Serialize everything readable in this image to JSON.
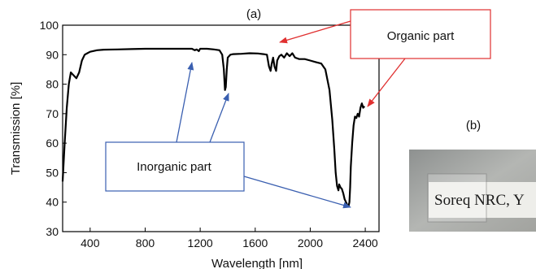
{
  "panel_a_label": "(a)",
  "panel_b_label": "(b)",
  "photo_caption": "Soreq NRC, Y",
  "colors": {
    "curve": "#000000",
    "organic_annotation": "#e03030",
    "inorganic_annotation": "#3a5fb0"
  },
  "annotations": {
    "organic": "Organic part",
    "inorganic": "Inorganic part"
  },
  "chart_data": {
    "type": "line",
    "title": "",
    "xlabel": "Wavelength [nm]",
    "ylabel": "Transmission [%]",
    "xlim": [
      200,
      2500
    ],
    "ylim": [
      30,
      100
    ],
    "xticks": [
      400,
      800,
      1200,
      1600,
      2000,
      2400
    ],
    "yticks": [
      30,
      40,
      50,
      60,
      70,
      80,
      90,
      100
    ],
    "grid": false,
    "series": [
      {
        "x": [
          200,
          215,
          230,
          245,
          260,
          280,
          300,
          320,
          340,
          360,
          380,
          400,
          450,
          500,
          600,
          700,
          800,
          900,
          1000,
          1100,
          1140,
          1160,
          1175,
          1190,
          1200,
          1250,
          1300,
          1340,
          1360,
          1372,
          1380,
          1386,
          1393,
          1400,
          1420,
          1440,
          1500,
          1560,
          1620,
          1660,
          1685,
          1700,
          1712,
          1720,
          1730,
          1740,
          1752,
          1760,
          1775,
          1790,
          1810,
          1830,
          1850,
          1870,
          1890,
          1920,
          1960,
          2000,
          2040,
          2080,
          2110,
          2140,
          2160,
          2175,
          2185,
          2195,
          2205,
          2210,
          2220,
          2230,
          2240,
          2250,
          2260,
          2270,
          2278,
          2285,
          2290,
          2295,
          2305,
          2315,
          2325,
          2335,
          2345,
          2355,
          2365,
          2375,
          2385,
          2395
        ],
        "y": [
          47,
          60,
          72,
          80,
          84,
          83,
          82,
          84,
          88,
          90,
          90.5,
          91,
          91.5,
          91.7,
          91.8,
          91.9,
          92,
          92,
          92,
          92,
          92,
          91.5,
          91.8,
          91.2,
          92,
          92,
          91.8,
          91.5,
          90,
          85,
          78,
          79,
          85,
          89,
          90,
          90.2,
          90.3,
          90.5,
          90.4,
          90.2,
          90,
          86,
          84.5,
          87,
          89,
          86,
          84.5,
          88,
          89.5,
          90,
          89,
          90.5,
          89.5,
          90.5,
          89,
          88.5,
          88.5,
          88,
          87.5,
          87,
          85,
          78,
          68,
          58,
          50,
          45.5,
          44,
          46,
          45,
          44.5,
          43,
          41,
          40,
          39,
          38.5,
          40,
          45,
          52,
          60,
          66,
          69,
          68.5,
          70,
          69,
          72,
          73.5,
          72,
          72.5
        ]
      }
    ]
  }
}
